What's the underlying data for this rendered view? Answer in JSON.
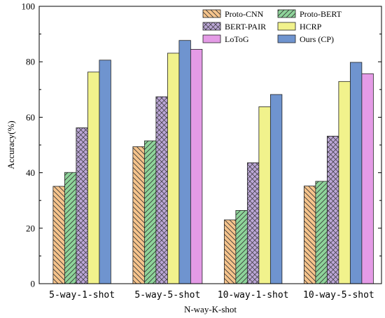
{
  "chart_data": {
    "type": "bar",
    "title": "",
    "xlabel": "N-way-K-shot",
    "ylabel": "Accuracy(%)",
    "ylim": [
      0,
      100
    ],
    "yticks": [
      "0",
      "20",
      "40",
      "60",
      "80",
      "100"
    ],
    "grid": false,
    "legend_position": "top-right",
    "categories": [
      "5-way-1-shot",
      "5-way-5-shot",
      "10-way-1-shot",
      "10-way-5-shot"
    ],
    "series": [
      {
        "name": "Proto-CNN",
        "color": "#F6C48C",
        "pattern": "diagonal-left",
        "values": [
          35.1,
          49.4,
          23.0,
          35.2
        ]
      },
      {
        "name": "Proto-BERT",
        "color": "#8ED49A",
        "pattern": "diagonal-right",
        "values": [
          40.1,
          51.5,
          26.4,
          36.9
        ]
      },
      {
        "name": "BERT-PAIR",
        "color": "#BBA6D6",
        "pattern": "crosshatch",
        "values": [
          56.2,
          67.4,
          43.6,
          53.2
        ]
      },
      {
        "name": "HCRP",
        "color": "#F1F28C",
        "pattern": "solid",
        "values": [
          76.3,
          83.1,
          63.8,
          72.9
        ]
      },
      {
        "name": "LoToG",
        "color": "#E49BE6",
        "pattern": "solid",
        "values": [
          null,
          84.5,
          null,
          75.7
        ]
      },
      {
        "name": "Ours (CP)",
        "color": "#6F94CF",
        "pattern": "solid",
        "values": [
          80.6,
          87.7,
          68.2,
          79.8
        ]
      }
    ],
    "bar_order": [
      "Proto-CNN",
      "Proto-BERT",
      "BERT-PAIR",
      "HCRP",
      "Ours (CP)",
      "LoToG"
    ]
  }
}
